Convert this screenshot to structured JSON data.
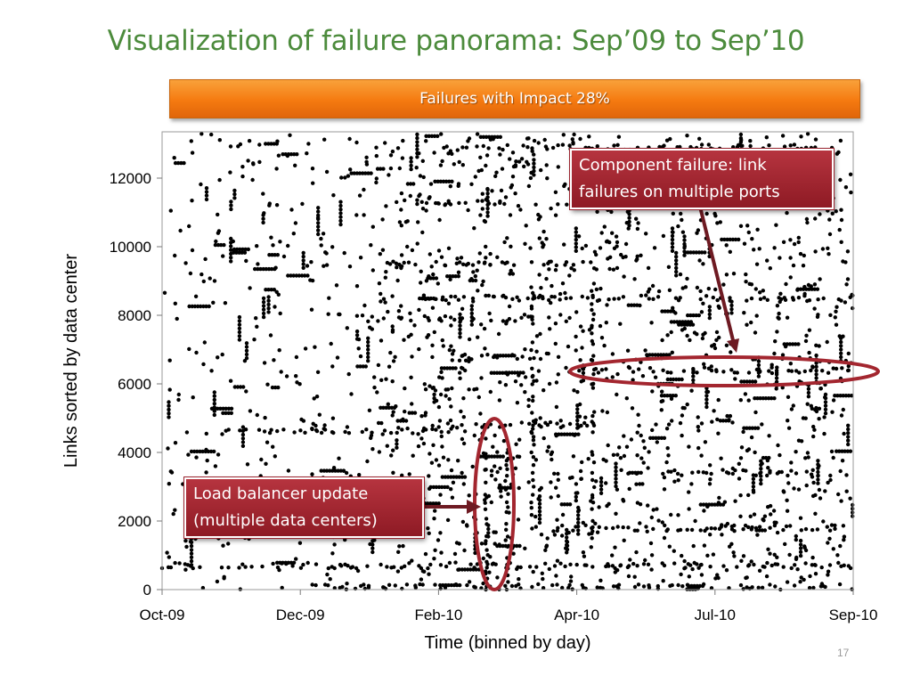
{
  "slide": {
    "title": "Visualization of failure panorama: Sep’09 to Sep’10",
    "banner": "Failures with Impact 28%",
    "page_number": "17"
  },
  "annotations": {
    "component_failure": [
      "Component failure: link",
      "failures on multiple ports"
    ],
    "load_balancer": [
      "Load balancer update",
      "(multiple data centers)"
    ]
  },
  "colors": {
    "title": "#4c8b3c",
    "banner": "#f57a10",
    "callout": "#a3262f",
    "ellipse": "#a3262f",
    "points": "#000000"
  },
  "chart_data": {
    "type": "scatter",
    "title": "",
    "xlabel": "Time (binned by day)",
    "ylabel": "Links sorted by data center",
    "x_ticks": [
      "Oct-09",
      "Dec-09",
      "Feb-10",
      "Apr-10",
      "Jul-10",
      "Sep-10"
    ],
    "y_ticks": [
      "0",
      "2000",
      "4000",
      "6000",
      "8000",
      "10000",
      "12000"
    ],
    "x_range_days": [
      0,
      345
    ],
    "x_tick_days": [
      0,
      69,
      138,
      207,
      276,
      345
    ],
    "ylim": [
      0,
      13300
    ],
    "dense_rows": [
      {
        "y": 12900,
        "from": 150,
        "to": 330
      },
      {
        "y": 11300,
        "from": 125,
        "to": 175
      },
      {
        "y": 9500,
        "from": 110,
        "to": 215
      },
      {
        "y": 8500,
        "from": 130,
        "to": 345
      },
      {
        "y": 7900,
        "from": 100,
        "to": 185
      },
      {
        "y": 6800,
        "from": 145,
        "to": 195
      },
      {
        "y": 6400,
        "from": 200,
        "to": 345
      },
      {
        "y": 4800,
        "from": 135,
        "to": 220
      },
      {
        "y": 4600,
        "from": 30,
        "to": 140
      },
      {
        "y": 3400,
        "from": 250,
        "to": 345
      },
      {
        "y": 1800,
        "from": 180,
        "to": 345
      },
      {
        "y": 700,
        "from": 0,
        "to": 345
      },
      {
        "y": 80,
        "from": 75,
        "to": 345
      }
    ],
    "dense_columns": [
      {
        "day": 162,
        "from": 0,
        "to": 4500
      },
      {
        "day": 172,
        "from": 0,
        "to": 4200
      },
      {
        "day": 185,
        "from": 2000,
        "to": 9000
      },
      {
        "day": 215,
        "from": 1500,
        "to": 9000
      }
    ],
    "highlight_regions": [
      {
        "label": "component_failure",
        "x": [
          205,
          345
        ],
        "y": [
          5900,
          7000
        ]
      },
      {
        "label": "load_balancer",
        "x": [
          155,
          172
        ],
        "y": [
          0,
          4900
        ]
      }
    ]
  }
}
